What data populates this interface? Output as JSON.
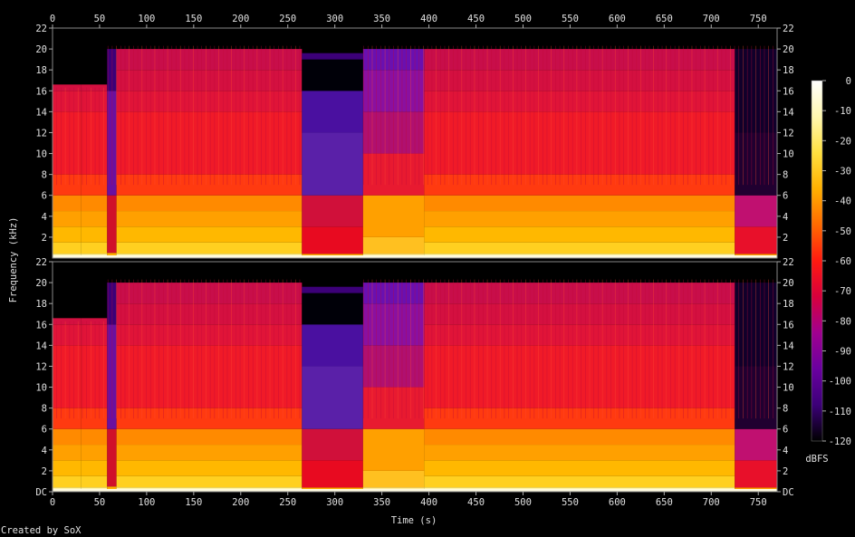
{
  "chart_data": {
    "type": "heatmap",
    "title": "",
    "xlabel": "Time (s)",
    "ylabel": "Frequency (kHz)",
    "xlim": [
      0,
      770
    ],
    "ylim_khz": [
      0,
      22
    ],
    "x_ticks": [
      "0",
      "50",
      "100",
      "150",
      "200",
      "250",
      "300",
      "350",
      "400",
      "450",
      "500",
      "550",
      "600",
      "650",
      "700",
      "750"
    ],
    "y_ticks_top": [
      "2",
      "4",
      "6",
      "8",
      "10",
      "12",
      "14",
      "16",
      "18",
      "20",
      "22"
    ],
    "y_ticks_bottom": [
      "DC",
      "2",
      "4",
      "6",
      "8",
      "10",
      "12",
      "14",
      "16",
      "18",
      "20",
      "22"
    ],
    "channels": 2,
    "colorbar": {
      "label": "dBFS",
      "ticks": [
        "0",
        "-10",
        "-20",
        "-30",
        "-40",
        "-50",
        "-60",
        "-70",
        "-80",
        "-90",
        "-100",
        "-110",
        "-120"
      ],
      "range": [
        -120,
        0
      ]
    },
    "segments": [
      {
        "t0": 0,
        "t1": 30,
        "cutoff_khz": 16,
        "level": "high"
      },
      {
        "t0": 30,
        "t1": 58,
        "cutoff_khz": 16,
        "level": "high"
      },
      {
        "t0": 58,
        "t1": 68,
        "cutoff_khz": 20,
        "level": "low"
      },
      {
        "t0": 68,
        "t1": 265,
        "cutoff_khz": 20,
        "level": "high"
      },
      {
        "t0": 265,
        "t1": 330,
        "cutoff_khz": 19,
        "level": "mid"
      },
      {
        "t0": 330,
        "t1": 395,
        "cutoff_khz": 20,
        "level": "mixed"
      },
      {
        "t0": 395,
        "t1": 725,
        "cutoff_khz": 20,
        "level": "high"
      },
      {
        "t0": 725,
        "t1": 770,
        "cutoff_khz": 20,
        "level": "fade"
      }
    ],
    "palette": [
      "#000000",
      "#1a0040",
      "#3c0078",
      "#6a00a0",
      "#a00090",
      "#d8003c",
      "#ff1a10",
      "#ff6a00",
      "#ffb000",
      "#ffe040",
      "#fff8b0",
      "#ffffff"
    ]
  },
  "footer": {
    "credit": "Created by SoX"
  }
}
